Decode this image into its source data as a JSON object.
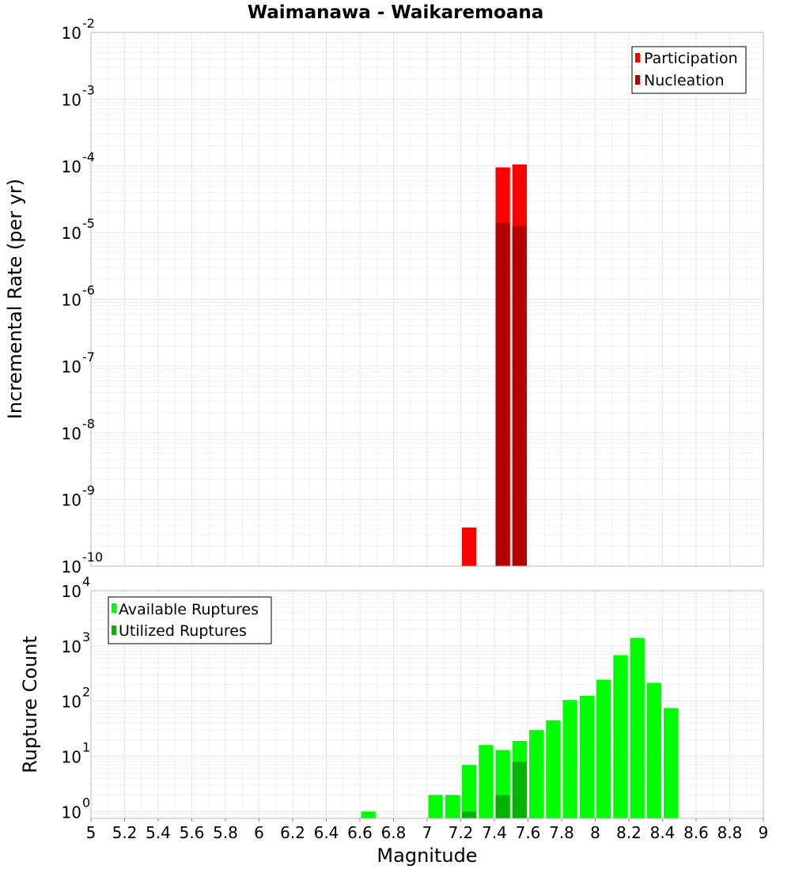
{
  "chart_data": [
    {
      "type": "bar",
      "title": "Waimanawa - Waikaremoana",
      "ylabel": "Incremental Rate (per yr)",
      "xlabel": "",
      "xlim": [
        5,
        9
      ],
      "ylim": [
        1e-10,
        0.01
      ],
      "yscale": "log",
      "ytick_bases": [
        "10",
        "10",
        "10",
        "10",
        "10",
        "10",
        "10",
        "10",
        "10"
      ],
      "ytick_exponents": [
        "-10",
        "-9",
        "-8",
        "-7",
        "-6",
        "-5",
        "-4",
        "-3",
        "-2"
      ],
      "ytick_values": [
        1e-10,
        1e-09,
        1e-08,
        1e-07,
        1e-06,
        1e-05,
        0.0001,
        0.001,
        0.01
      ],
      "bin_width": 0.1,
      "grid": true,
      "legend_position": "top-right",
      "series": [
        {
          "name": "Participation",
          "color": "#ff0000",
          "x": [
            7.25,
            7.45,
            7.55
          ],
          "values": [
            3.8e-10,
            9.5e-05,
            0.000105
          ]
        },
        {
          "name": "Nucleation",
          "color": "#b30000",
          "x": [
            7.45,
            7.55
          ],
          "values": [
            1.4e-05,
            1.25e-05
          ]
        }
      ]
    },
    {
      "type": "bar",
      "title": "",
      "ylabel": "Rupture Count",
      "xlabel": "Magnitude",
      "xlim": [
        5,
        9
      ],
      "ylim": [
        0.75,
        10000
      ],
      "yscale": "log",
      "ytick_bases": [
        "10",
        "10",
        "10",
        "10",
        "10"
      ],
      "ytick_exponents": [
        "0",
        "1",
        "2",
        "3",
        "4"
      ],
      "ytick_values": [
        1,
        10,
        100,
        1000,
        10000
      ],
      "xticks": [
        "5",
        "5.2",
        "5.4",
        "5.6",
        "5.8",
        "6",
        "6.2",
        "6.4",
        "6.6",
        "6.8",
        "7",
        "7.2",
        "7.4",
        "7.6",
        "7.8",
        "8",
        "8.2",
        "8.4",
        "8.6",
        "8.8",
        "9"
      ],
      "bin_width": 0.1,
      "grid": true,
      "legend_position": "top-left",
      "series": [
        {
          "name": "Available Ruptures",
          "color": "#00ff00",
          "x": [
            6.65,
            7.05,
            7.15,
            7.25,
            7.35,
            7.45,
            7.55,
            7.65,
            7.75,
            7.85,
            7.95,
            8.05,
            8.15,
            8.25,
            8.35,
            8.45
          ],
          "values": [
            1,
            2,
            2,
            7,
            16,
            13,
            19,
            30,
            45,
            105,
            125,
            245,
            680,
            1400,
            215,
            75
          ]
        },
        {
          "name": "Utilized Ruptures",
          "color": "#00b300",
          "x": [
            7.25,
            7.45,
            7.55
          ],
          "values": [
            1,
            2,
            8
          ]
        }
      ]
    }
  ]
}
